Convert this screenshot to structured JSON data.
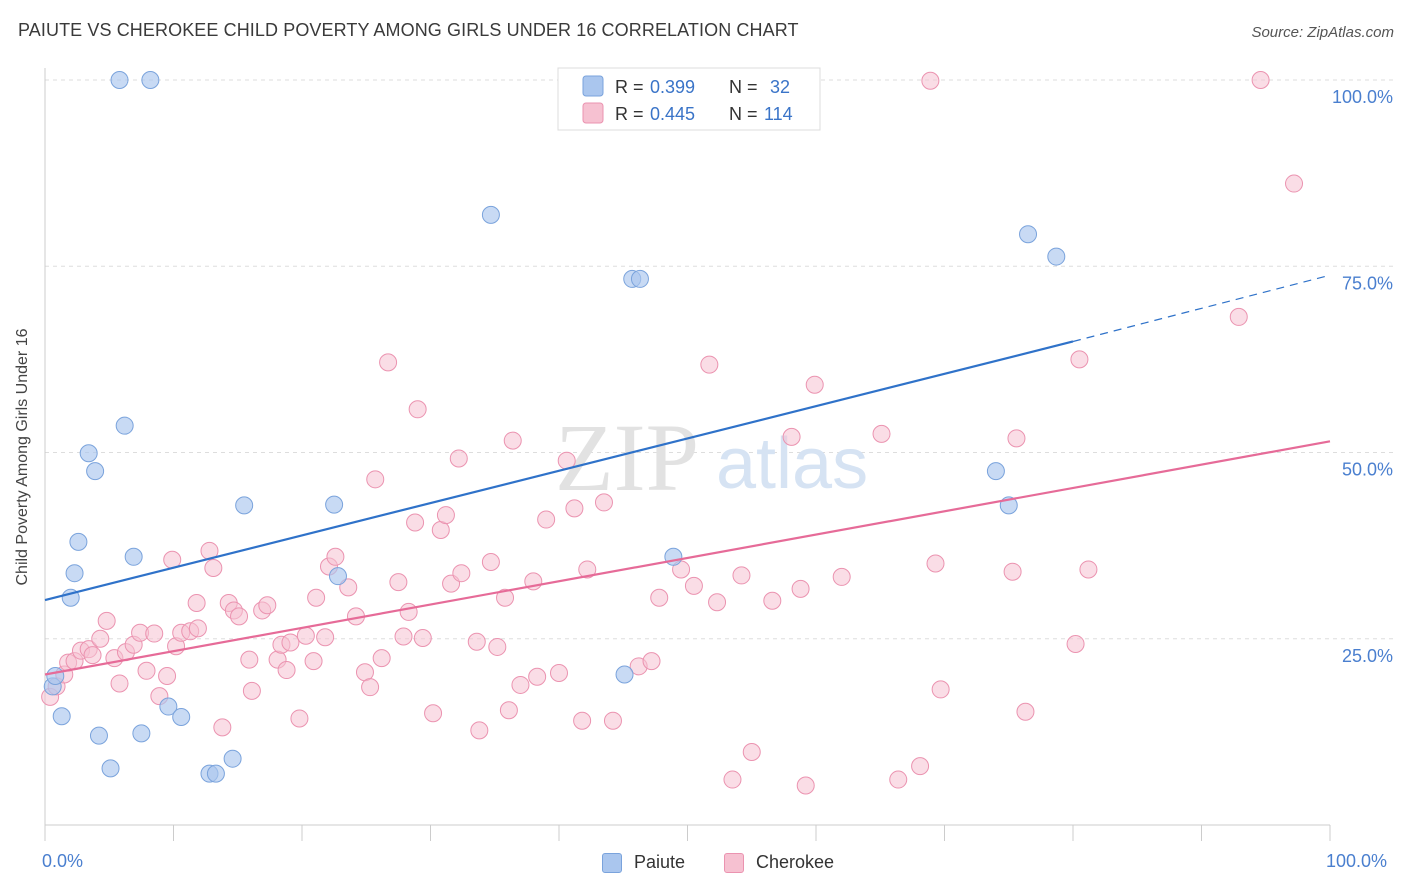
{
  "title": "PAIUTE VS CHEROKEE CHILD POVERTY AMONG GIRLS UNDER 16 CORRELATION CHART",
  "source": "Source: ZipAtlas.com",
  "watermark": {
    "zip": "ZIP",
    "atlas": "atlas"
  },
  "colors": {
    "paiute_fill": "#aac6ee",
    "paiute_stroke": "#7aa3dc",
    "paiute_line": "#2f72c9",
    "cherokee_fill": "#f6c1d1",
    "cherokee_stroke": "#eb93b0",
    "cherokee_line": "#e66b98",
    "axis_text": "#4a7fcf",
    "grid": "#dddddd"
  },
  "legend_top": {
    "rows": [
      {
        "r_label": "R =",
        "r_value": "0.399",
        "n_label": "N =",
        "n_value": "32"
      },
      {
        "r_label": "R =",
        "r_value": "0.445",
        "n_label": "N =",
        "n_value": "114"
      }
    ]
  },
  "legend_bottom": {
    "paiute": "Paiute",
    "cherokee": "Cherokee"
  },
  "chart_data": {
    "type": "scatter",
    "title": "PAIUTE VS CHEROKEE CHILD POVERTY AMONG GIRLS UNDER 16 CORRELATION CHART",
    "xlabel": "",
    "ylabel": "Child Poverty Among Girls Under 16",
    "x_tick_labels": [
      "0.0%",
      "100.0%"
    ],
    "y_tick_labels": [
      "25.0%",
      "50.0%",
      "75.0%",
      "100.0%"
    ],
    "xlim": [
      0,
      100
    ],
    "ylim": [
      0,
      100
    ],
    "grid": true,
    "series": [
      {
        "name": "Paiute",
        "trend": {
          "x": [
            0,
            80
          ],
          "y": [
            30.2,
            64.9
          ],
          "dashed_to": [
            100,
            73.8
          ]
        },
        "points": [
          [
            0.6,
            18.6
          ],
          [
            0.8,
            20.0
          ],
          [
            1.3,
            14.6
          ],
          [
            2.0,
            30.5
          ],
          [
            2.3,
            33.8
          ],
          [
            2.6,
            38.0
          ],
          [
            3.4,
            49.9
          ],
          [
            3.9,
            47.5
          ],
          [
            4.2,
            12.0
          ],
          [
            5.1,
            7.6
          ],
          [
            5.8,
            100.0
          ],
          [
            6.2,
            53.6
          ],
          [
            6.9,
            36.0
          ],
          [
            7.5,
            12.3
          ],
          [
            8.2,
            100.0
          ],
          [
            9.6,
            15.9
          ],
          [
            10.6,
            14.5
          ],
          [
            12.8,
            6.9
          ],
          [
            13.3,
            6.9
          ],
          [
            14.6,
            8.9
          ],
          [
            15.5,
            42.9
          ],
          [
            22.5,
            43.0
          ],
          [
            22.8,
            33.4
          ],
          [
            34.7,
            81.9
          ],
          [
            45.1,
            20.2
          ],
          [
            45.7,
            73.3
          ],
          [
            46.3,
            73.3
          ],
          [
            48.9,
            36.0
          ],
          [
            74.0,
            47.5
          ],
          [
            75.0,
            42.9
          ],
          [
            76.5,
            79.3
          ],
          [
            78.7,
            76.3
          ]
        ]
      },
      {
        "name": "Cherokee",
        "trend": {
          "x": [
            0,
            100
          ],
          "y": [
            20.2,
            51.5
          ]
        },
        "points": [
          [
            0.4,
            17.2
          ],
          [
            0.9,
            18.6
          ],
          [
            1.5,
            20.2
          ],
          [
            1.8,
            21.8
          ],
          [
            2.3,
            22.0
          ],
          [
            2.8,
            23.4
          ],
          [
            3.4,
            23.6
          ],
          [
            3.7,
            22.8
          ],
          [
            4.3,
            25.0
          ],
          [
            4.8,
            27.4
          ],
          [
            5.4,
            22.4
          ],
          [
            5.8,
            19.0
          ],
          [
            6.3,
            23.2
          ],
          [
            6.9,
            24.2
          ],
          [
            7.4,
            25.8
          ],
          [
            7.9,
            20.7
          ],
          [
            8.5,
            25.7
          ],
          [
            8.9,
            17.3
          ],
          [
            9.5,
            20.0
          ],
          [
            9.9,
            35.6
          ],
          [
            10.2,
            24.0
          ],
          [
            10.6,
            25.8
          ],
          [
            11.3,
            26.0
          ],
          [
            11.8,
            29.8
          ],
          [
            11.9,
            26.4
          ],
          [
            12.8,
            36.8
          ],
          [
            13.1,
            34.5
          ],
          [
            13.8,
            13.1
          ],
          [
            14.3,
            29.8
          ],
          [
            14.7,
            28.8
          ],
          [
            15.1,
            28.0
          ],
          [
            15.9,
            22.2
          ],
          [
            16.1,
            18.0
          ],
          [
            16.9,
            28.8
          ],
          [
            17.3,
            29.5
          ],
          [
            18.1,
            22.2
          ],
          [
            18.4,
            24.2
          ],
          [
            18.8,
            20.8
          ],
          [
            19.1,
            24.5
          ],
          [
            19.8,
            14.3
          ],
          [
            20.3,
            25.4
          ],
          [
            20.9,
            22.0
          ],
          [
            21.1,
            30.5
          ],
          [
            21.8,
            25.2
          ],
          [
            22.1,
            34.7
          ],
          [
            22.6,
            36.0
          ],
          [
            23.6,
            31.9
          ],
          [
            24.2,
            28.0
          ],
          [
            24.9,
            20.5
          ],
          [
            25.3,
            18.5
          ],
          [
            25.7,
            46.4
          ],
          [
            26.2,
            22.4
          ],
          [
            26.7,
            62.1
          ],
          [
            27.5,
            32.6
          ],
          [
            27.9,
            25.3
          ],
          [
            28.3,
            28.6
          ],
          [
            28.8,
            40.6
          ],
          [
            29.0,
            55.8
          ],
          [
            29.4,
            25.1
          ],
          [
            30.2,
            15.0
          ],
          [
            30.8,
            39.6
          ],
          [
            31.2,
            41.6
          ],
          [
            31.6,
            32.4
          ],
          [
            32.2,
            49.2
          ],
          [
            32.4,
            33.8
          ],
          [
            33.6,
            24.6
          ],
          [
            33.8,
            12.7
          ],
          [
            34.7,
            35.3
          ],
          [
            35.2,
            23.9
          ],
          [
            35.8,
            30.5
          ],
          [
            36.1,
            15.4
          ],
          [
            36.4,
            51.6
          ],
          [
            37.0,
            18.8
          ],
          [
            38.0,
            32.7
          ],
          [
            38.3,
            19.9
          ],
          [
            39.0,
            41.0
          ],
          [
            40.0,
            20.4
          ],
          [
            40.6,
            48.9
          ],
          [
            41.2,
            42.5
          ],
          [
            41.8,
            14.0
          ],
          [
            42.2,
            34.3
          ],
          [
            43.5,
            43.3
          ],
          [
            44.2,
            14.0
          ],
          [
            46.2,
            21.3
          ],
          [
            47.2,
            22.0
          ],
          [
            47.8,
            30.5
          ],
          [
            49.5,
            34.3
          ],
          [
            50.5,
            32.1
          ],
          [
            51.7,
            61.8
          ],
          [
            52.3,
            29.9
          ],
          [
            53.5,
            6.1
          ],
          [
            54.2,
            33.5
          ],
          [
            55.0,
            9.8
          ],
          [
            56.6,
            30.1
          ],
          [
            58.1,
            52.1
          ],
          [
            58.8,
            31.7
          ],
          [
            59.2,
            5.3
          ],
          [
            59.9,
            59.1
          ],
          [
            62.0,
            33.3
          ],
          [
            65.1,
            52.5
          ],
          [
            66.4,
            6.1
          ],
          [
            68.1,
            7.9
          ],
          [
            68.9,
            99.9
          ],
          [
            69.3,
            35.1
          ],
          [
            69.7,
            18.2
          ],
          [
            75.3,
            34.0
          ],
          [
            75.6,
            51.9
          ],
          [
            76.3,
            15.2
          ],
          [
            80.2,
            24.3
          ],
          [
            80.5,
            62.5
          ],
          [
            81.2,
            34.3
          ],
          [
            92.9,
            68.2
          ],
          [
            94.6,
            100.0
          ],
          [
            97.2,
            86.1
          ]
        ]
      }
    ]
  }
}
